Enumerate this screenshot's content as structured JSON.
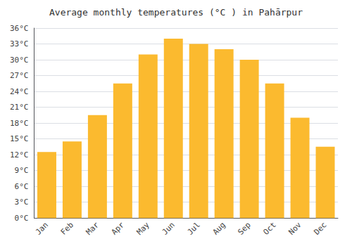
{
  "chart_data": {
    "type": "bar",
    "title": "Average monthly temperatures (°C ) in Pahārpur",
    "categories": [
      "Jan",
      "Feb",
      "Mar",
      "Apr",
      "May",
      "Jun",
      "Jul",
      "Aug",
      "Sep",
      "Oct",
      "Nov",
      "Dec"
    ],
    "values": [
      12.5,
      14.5,
      19.5,
      25.5,
      31.0,
      34.0,
      33.0,
      32.0,
      30.0,
      25.5,
      19.0,
      13.5
    ],
    "color": "#FBBA2F",
    "ylim": [
      0,
      36
    ],
    "yticks": [
      {
        "value": 0,
        "label": "0°C"
      },
      {
        "value": 3,
        "label": "3°C"
      },
      {
        "value": 6,
        "label": "6°C"
      },
      {
        "value": 9,
        "label": "9°C"
      },
      {
        "value": 12,
        "label": "12°C"
      },
      {
        "value": 15,
        "label": "15°C"
      },
      {
        "value": 18,
        "label": "18°C"
      },
      {
        "value": 21,
        "label": "21°C"
      },
      {
        "value": 24,
        "label": "24°C"
      },
      {
        "value": 27,
        "label": "27°C"
      },
      {
        "value": 30,
        "label": "30°C"
      },
      {
        "value": 33,
        "label": "33°C"
      },
      {
        "value": 36,
        "label": "36°C"
      }
    ],
    "grid": true
  }
}
